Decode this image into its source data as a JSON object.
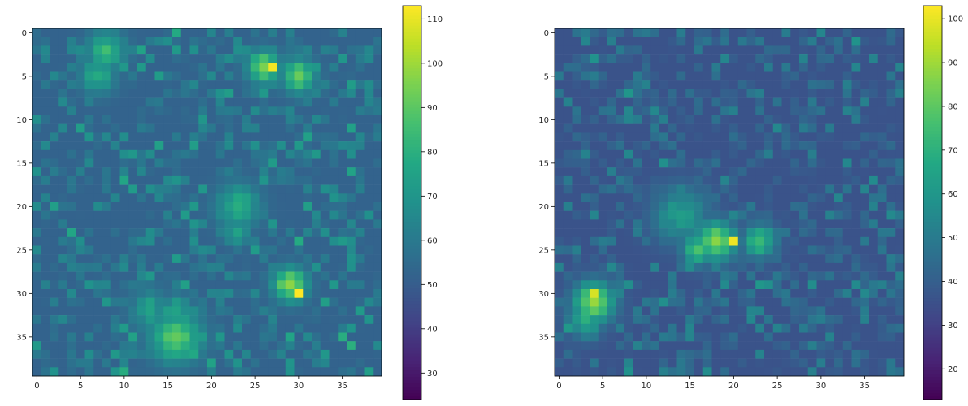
{
  "chart_data": [
    {
      "type": "heatmap",
      "colormap": "viridis",
      "grid_size": [
        40,
        40
      ],
      "xlim": [
        -0.5,
        39.5
      ],
      "ylim": [
        39.5,
        -0.5
      ],
      "xticks": [
        0,
        5,
        10,
        15,
        20,
        25,
        30,
        35
      ],
      "yticks": [
        0,
        5,
        10,
        15,
        20,
        25,
        30,
        35
      ],
      "colorbar": {
        "min": 24,
        "max": 113,
        "ticks": [
          30,
          40,
          50,
          60,
          70,
          80,
          90,
          100,
          110
        ]
      },
      "background_mean": 52,
      "background_spread": 10,
      "hotspots": [
        {
          "x": 8,
          "y": 2,
          "value": 82,
          "sigma": 1.5
        },
        {
          "x": 7,
          "y": 5,
          "value": 78,
          "sigma": 1.4
        },
        {
          "x": 26,
          "y": 4,
          "value": 95,
          "sigma": 1.3
        },
        {
          "x": 27,
          "y": 4,
          "value": 113,
          "sigma": 0.5
        },
        {
          "x": 30,
          "y": 5,
          "value": 92,
          "sigma": 1.3
        },
        {
          "x": 23,
          "y": 20,
          "value": 80,
          "sigma": 1.7
        },
        {
          "x": 23,
          "y": 23,
          "value": 72,
          "sigma": 1.0
        },
        {
          "x": 29,
          "y": 29,
          "value": 100,
          "sigma": 1.3
        },
        {
          "x": 30,
          "y": 30,
          "value": 110,
          "sigma": 0.5
        },
        {
          "x": 16,
          "y": 35,
          "value": 90,
          "sigma": 2.0
        },
        {
          "x": 16,
          "y": 32,
          "value": 78,
          "sigma": 1.2
        },
        {
          "x": 13,
          "y": 32,
          "value": 72,
          "sigma": 1.6
        }
      ]
    },
    {
      "type": "heatmap",
      "colormap": "viridis",
      "grid_size": [
        40,
        40
      ],
      "xlim": [
        -0.5,
        39.5
      ],
      "ylim": [
        39.5,
        -0.5
      ],
      "xticks": [
        0,
        5,
        10,
        15,
        20,
        25,
        30,
        35
      ],
      "yticks": [
        0,
        5,
        10,
        15,
        20,
        25,
        30,
        35
      ],
      "colorbar": {
        "min": 13,
        "max": 103,
        "ticks": [
          20,
          30,
          40,
          50,
          60,
          70,
          80,
          90,
          100
        ]
      },
      "background_mean": 36,
      "background_spread": 9,
      "hotspots": [
        {
          "x": 18,
          "y": 24,
          "value": 88,
          "sigma": 1.6
        },
        {
          "x": 20,
          "y": 24,
          "value": 103,
          "sigma": 0.5
        },
        {
          "x": 16,
          "y": 25,
          "value": 80,
          "sigma": 1.2
        },
        {
          "x": 23,
          "y": 24,
          "value": 75,
          "sigma": 1.3
        },
        {
          "x": 14,
          "y": 21,
          "value": 62,
          "sigma": 2.2
        },
        {
          "x": 4,
          "y": 31,
          "value": 90,
          "sigma": 1.6
        },
        {
          "x": 4,
          "y": 30,
          "value": 95,
          "sigma": 0.6
        },
        {
          "x": 3,
          "y": 33,
          "value": 70,
          "sigma": 1.4
        },
        {
          "x": 11,
          "y": 9,
          "value": 58,
          "sigma": 0.6
        }
      ]
    }
  ]
}
